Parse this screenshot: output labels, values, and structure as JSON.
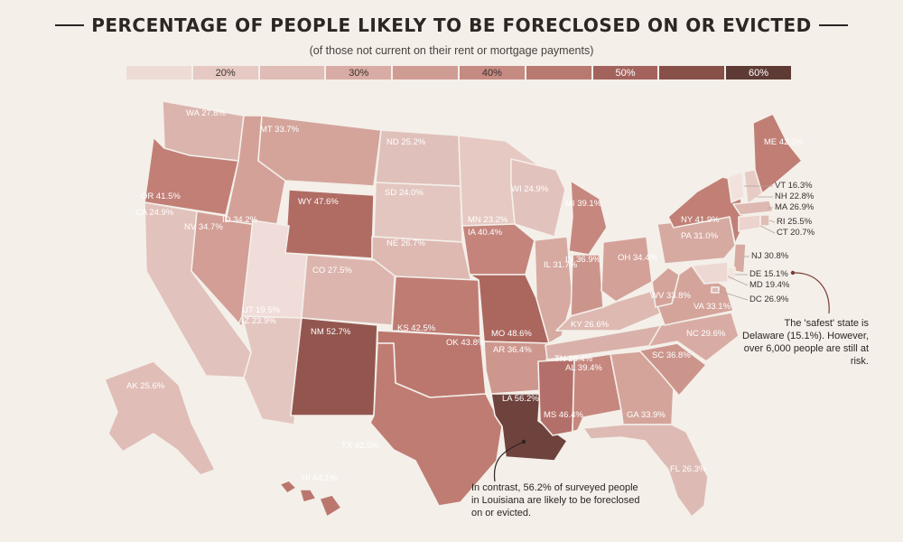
{
  "header": {
    "title": "PERCENTAGE OF PEOPLE LIKELY TO BE FORECLOSED ON OR EVICTED",
    "subtitle": "(of those not current on their rent or mortgage payments)"
  },
  "legend": [
    {
      "label": "",
      "color": "#eedbd6"
    },
    {
      "label": "20%",
      "color": "#e6c9c3"
    },
    {
      "label": "",
      "color": "#dfbcb5"
    },
    {
      "label": "30%",
      "color": "#d8aca4"
    },
    {
      "label": "",
      "color": "#cf9c93"
    },
    {
      "label": "40%",
      "color": "#c58a82"
    },
    {
      "label": "",
      "color": "#b87971"
    },
    {
      "label": "50%",
      "color": "#a3635c"
    },
    {
      "label": "",
      "color": "#875048"
    },
    {
      "label": "60%",
      "color": "#5e3a35"
    }
  ],
  "states": [
    {
      "abbr": "WA",
      "value": "27.8%",
      "color": "#dbb4ad",
      "label": "WA 27.8%"
    },
    {
      "abbr": "OR",
      "value": "41.5%",
      "color": "#c17f76",
      "label": "OR 41.5%"
    },
    {
      "abbr": "CA",
      "value": "24.9%",
      "color": "#e2c2bc",
      "label": "CA 24.9%"
    },
    {
      "abbr": "NV",
      "value": "34.7%",
      "color": "#d29e95",
      "label": "NV 34.7%"
    },
    {
      "abbr": "ID",
      "value": "34.2%",
      "color": "#d3a198",
      "label": "ID 34.2%"
    },
    {
      "abbr": "MT",
      "value": "33.7%",
      "color": "#d4a49b",
      "label": "MT 33.7%"
    },
    {
      "abbr": "WY",
      "value": "47.6%",
      "color": "#b06c63",
      "label": "WY 47.6%"
    },
    {
      "abbr": "UT",
      "value": "19.5%",
      "color": "#f0dcd8",
      "label": "UT 19.5%"
    },
    {
      "abbr": "AZ",
      "value": "23.9%",
      "color": "#e4c6c0",
      "label": "AZ 23.9%"
    },
    {
      "abbr": "CO",
      "value": "27.5%",
      "color": "#dbb5ae",
      "label": "CO 27.5%"
    },
    {
      "abbr": "NM",
      "value": "52.7%",
      "color": "#93564f",
      "label": "NM 52.7%"
    },
    {
      "abbr": "ND",
      "value": "25.2%",
      "color": "#e0c0ba",
      "label": "ND 25.2%"
    },
    {
      "abbr": "SD",
      "value": "24.0%",
      "color": "#e4c6c0",
      "label": "SD 24.0%"
    },
    {
      "abbr": "NE",
      "value": "26.7%",
      "color": "#ddb9b2",
      "label": "NE 26.7%"
    },
    {
      "abbr": "KS",
      "value": "42.5%",
      "color": "#bf7c73",
      "label": "KS 42.5%"
    },
    {
      "abbr": "OK",
      "value": "43.8%",
      "color": "#bb776e",
      "label": "OK 43.8%"
    },
    {
      "abbr": "TX",
      "value": "42.5%",
      "color": "#bf7c73",
      "label": "TX 42.5%"
    },
    {
      "abbr": "MN",
      "value": "23.2%",
      "color": "#e6c9c3",
      "label": "MN 23.2%"
    },
    {
      "abbr": "IA",
      "value": "40.4%",
      "color": "#c4847b",
      "label": "IA 40.4%"
    },
    {
      "abbr": "MO",
      "value": "48.6%",
      "color": "#ab665d",
      "label": "MO 48.6%"
    },
    {
      "abbr": "AR",
      "value": "36.4%",
      "color": "#cd978e",
      "label": "AR 36.4%"
    },
    {
      "abbr": "LA",
      "value": "56.2%",
      "color": "#6e423d",
      "label": "LA 56.2%"
    },
    {
      "abbr": "WI",
      "value": "24.9%",
      "color": "#e2c2bc",
      "label": "WI 24.9%"
    },
    {
      "abbr": "IL",
      "value": "31.7%",
      "color": "#d6a9a1",
      "label": "IL 31.7%"
    },
    {
      "abbr": "MI",
      "value": "39.1%",
      "color": "#c6877e",
      "label": "MI 39.1%"
    },
    {
      "abbr": "IN",
      "value": "36.9%",
      "color": "#cc958c",
      "label": "IN 36.9%"
    },
    {
      "abbr": "OH",
      "value": "34.4%",
      "color": "#d3a198",
      "label": "OH 34.4%"
    },
    {
      "abbr": "KY",
      "value": "26.6%",
      "color": "#ddb9b2",
      "label": "KY 26.6%"
    },
    {
      "abbr": "TN",
      "value": "28.4%",
      "color": "#d9b1aa",
      "label": "TN 28.4%"
    },
    {
      "abbr": "MS",
      "value": "46.4%",
      "color": "#b3706a",
      "label": "MS 46.4%"
    },
    {
      "abbr": "AL",
      "value": "39.4%",
      "color": "#c6877e",
      "label": "AL 39.4%"
    },
    {
      "abbr": "GA",
      "value": "33.9%",
      "color": "#d4a49b",
      "label": "GA 33.9%"
    },
    {
      "abbr": "FL",
      "value": "26.3%",
      "color": "#ddbbb4",
      "label": "FL 26.3%"
    },
    {
      "abbr": "SC",
      "value": "36.8%",
      "color": "#cc958c",
      "label": "SC 36.8%"
    },
    {
      "abbr": "NC",
      "value": "29.6%",
      "color": "#d8aca4",
      "label": "NC 29.6%"
    },
    {
      "abbr": "VA",
      "value": "33.1%",
      "color": "#d4a49b",
      "label": "VA 33.1%"
    },
    {
      "abbr": "WV",
      "value": "33.8%",
      "color": "#d4a49b",
      "label": "WV 33.8%"
    },
    {
      "abbr": "PA",
      "value": "31.0%",
      "color": "#d6a9a1",
      "label": "PA 31.0%"
    },
    {
      "abbr": "NY",
      "value": "41.9%",
      "color": "#c17f76",
      "label": "NY 41.9%"
    },
    {
      "abbr": "ME",
      "value": "42.3%",
      "color": "#c07e75",
      "label": "ME 42.3%"
    },
    {
      "abbr": "VT",
      "value": "16.3%",
      "color": "#f2e2de",
      "label": "VT 16.3%"
    },
    {
      "abbr": "NH",
      "value": "22.8%",
      "color": "#e7cbc5",
      "label": "NH 22.8%"
    },
    {
      "abbr": "MA",
      "value": "26.9%",
      "color": "#ddb9b2",
      "label": "MA 26.9%"
    },
    {
      "abbr": "RI",
      "value": "25.5%",
      "color": "#e0bdb7",
      "label": "RI 25.5%"
    },
    {
      "abbr": "CT",
      "value": "20.7%",
      "color": "#ecd3ce",
      "label": "CT 20.7%"
    },
    {
      "abbr": "NJ",
      "value": "30.8%",
      "color": "#d6a9a1",
      "label": "NJ 30.8%"
    },
    {
      "abbr": "DE",
      "value": "15.1%",
      "color": "#f3e4e0",
      "label": "DE 15.1%"
    },
    {
      "abbr": "MD",
      "value": "19.4%",
      "color": "#eed8d4",
      "label": "MD 19.4%"
    },
    {
      "abbr": "DC",
      "value": "26.9%",
      "color": "#ddb9b2",
      "label": "DC 26.9%"
    },
    {
      "abbr": "AK",
      "value": "25.6%",
      "color": "#e0bdb7",
      "label": "AK 25.6%"
    },
    {
      "abbr": "HI",
      "value": "44.1%",
      "color": "#bb776e",
      "label": "HI 44.1%"
    }
  ],
  "notes": {
    "delaware": "The 'safest' state is Delaware (15.1%). However, over 6,000 people are still at risk.",
    "louisiana": "In contrast, 56.2% of surveyed people in Louisiana are likely to be foreclosed on or evicted."
  }
}
